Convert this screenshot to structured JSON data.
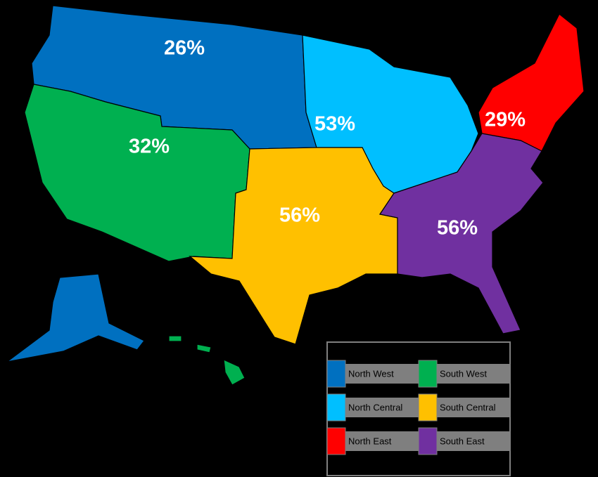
{
  "chart_data": {
    "type": "map",
    "categories": [
      "North West",
      "South West",
      "North Central",
      "South Central",
      "North East",
      "South East"
    ],
    "values": [
      26,
      32,
      53,
      56,
      29,
      56
    ],
    "value_labels": [
      "26%",
      "32%",
      "53%",
      "56%",
      "29%",
      "56%"
    ],
    "colors": [
      "#0070c0",
      "#00b050",
      "#00bfff",
      "#ffc000",
      "#ff0000",
      "#7030a0"
    ]
  }
}
